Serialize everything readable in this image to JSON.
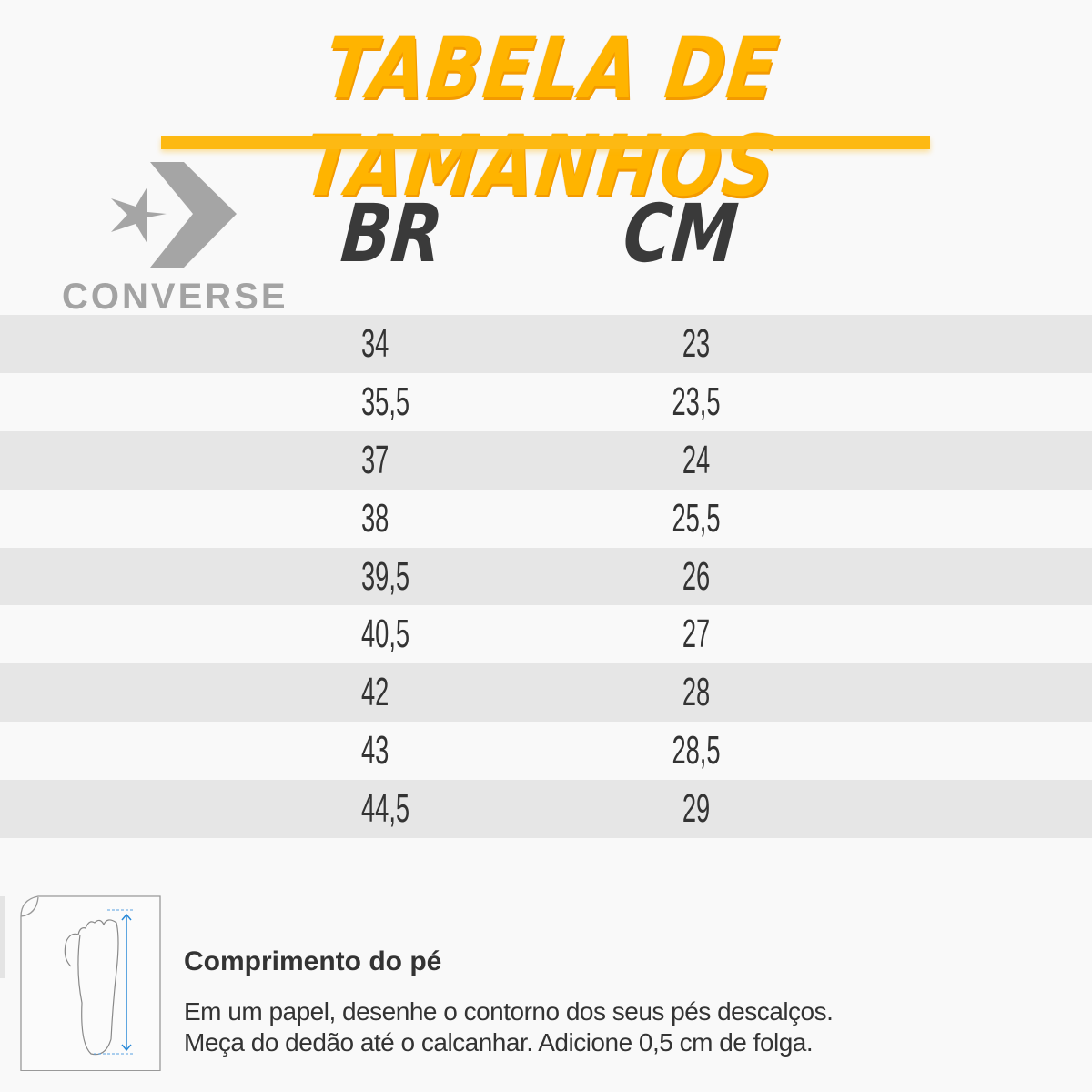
{
  "title": "TABELA DE TAMANHOS",
  "brand": {
    "name": "CONVERSE",
    "logo": "converse-star-chevron-logo",
    "color": "#a3a3a3"
  },
  "colors": {
    "title": "#ffb400",
    "underline": "#fdb913",
    "row_alt": "#e6e6e6",
    "background": "#f9f9f9",
    "text": "#333333",
    "arrow": "#2a8ad8"
  },
  "table": {
    "headers": [
      "BR",
      "CM"
    ],
    "rows": [
      [
        "34",
        "23"
      ],
      [
        "35,5",
        "23,5"
      ],
      [
        "37",
        "24"
      ],
      [
        "38",
        "25,5"
      ],
      [
        "39,5",
        "26"
      ],
      [
        "40,5",
        "27"
      ],
      [
        "42",
        "28"
      ],
      [
        "43",
        "28,5"
      ],
      [
        "44,5",
        "29"
      ]
    ]
  },
  "info": {
    "icon": "foot-measure-icon",
    "heading": "Comprimento do pé",
    "line1": "Em um papel, desenhe o contorno dos seus pés descalços.",
    "line2": "Meça do dedão até o calcanhar. Adicione 0,5 cm de folga."
  }
}
